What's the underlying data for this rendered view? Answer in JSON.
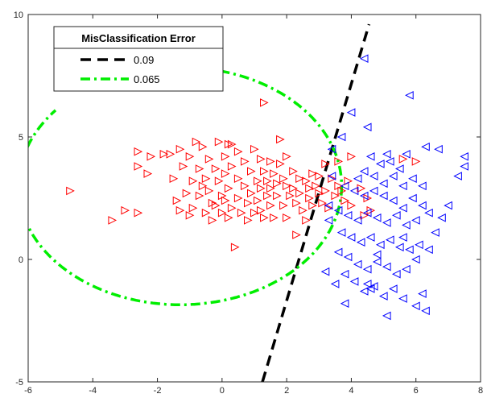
{
  "chart_data": {
    "type": "scatter",
    "xlim": [
      -6,
      8
    ],
    "ylim": [
      -5,
      10
    ],
    "x_ticks": [
      -6,
      -4,
      -2,
      0,
      2,
      4,
      6,
      8
    ],
    "y_ticks": [
      -5,
      0,
      5,
      10
    ],
    "grid": false,
    "legend": {
      "title": "MisClassification Error",
      "placement": "top-left",
      "entries": [
        {
          "label": "0.09",
          "color": "#000000",
          "style": "dashed"
        },
        {
          "label": "0.065",
          "color": "#00ee00",
          "style": "dash-dot"
        }
      ]
    },
    "series": [
      {
        "marker": "triangle-right",
        "color": "#ff0000",
        "points": [
          [
            -4.7,
            2.8
          ],
          [
            -3.4,
            1.6
          ],
          [
            -3.0,
            2.0
          ],
          [
            -2.6,
            4.4
          ],
          [
            -2.6,
            3.8
          ],
          [
            -2.6,
            1.9
          ],
          [
            -2.3,
            3.5
          ],
          [
            -2.2,
            4.2
          ],
          [
            -1.8,
            4.3
          ],
          [
            -1.6,
            4.3
          ],
          [
            -1.5,
            3.3
          ],
          [
            -1.4,
            2.4
          ],
          [
            -1.3,
            2.0
          ],
          [
            -1.3,
            4.5
          ],
          [
            -1.2,
            3.8
          ],
          [
            -1.1,
            2.7
          ],
          [
            -1.0,
            4.2
          ],
          [
            -1.0,
            1.8
          ],
          [
            -0.9,
            3.2
          ],
          [
            -0.9,
            2.1
          ],
          [
            -0.8,
            4.8
          ],
          [
            -0.7,
            3.7
          ],
          [
            -0.7,
            2.6
          ],
          [
            -0.6,
            4.6
          ],
          [
            -0.6,
            3.0
          ],
          [
            -0.5,
            3.3
          ],
          [
            -0.5,
            1.9
          ],
          [
            -0.4,
            4.1
          ],
          [
            -0.4,
            2.8
          ],
          [
            -0.3,
            2.3
          ],
          [
            -0.3,
            1.6
          ],
          [
            -0.2,
            3.7
          ],
          [
            -0.2,
            2.2
          ],
          [
            -0.1,
            4.8
          ],
          [
            -0.1,
            3.2
          ],
          [
            0.0,
            2.6
          ],
          [
            0.0,
            1.9
          ],
          [
            0.1,
            4.2
          ],
          [
            0.1,
            3.5
          ],
          [
            0.1,
            2.4
          ],
          [
            0.2,
            2.9
          ],
          [
            0.2,
            1.7
          ],
          [
            0.3,
            4.7
          ],
          [
            0.3,
            3.8
          ],
          [
            0.3,
            2.1
          ],
          [
            0.4,
            0.5
          ],
          [
            0.5,
            4.4
          ],
          [
            0.5,
            3.3
          ],
          [
            0.5,
            2.5
          ],
          [
            0.6,
            1.9
          ],
          [
            0.7,
            4.0
          ],
          [
            0.7,
            3.0
          ],
          [
            0.8,
            2.3
          ],
          [
            0.8,
            1.6
          ],
          [
            0.9,
            3.6
          ],
          [
            0.9,
            2.7
          ],
          [
            1.0,
            4.5
          ],
          [
            1.0,
            1.9
          ],
          [
            1.1,
            3.2
          ],
          [
            1.1,
            2.4
          ],
          [
            1.2,
            4.1
          ],
          [
            1.2,
            2.9
          ],
          [
            1.2,
            2.0
          ],
          [
            1.3,
            3.6
          ],
          [
            1.3,
            1.7
          ],
          [
            1.4,
            3.2
          ],
          [
            1.4,
            2.6
          ],
          [
            1.5,
            4.0
          ],
          [
            1.5,
            2.9
          ],
          [
            1.5,
            2.2
          ],
          [
            1.6,
            3.5
          ],
          [
            1.6,
            1.7
          ],
          [
            1.7,
            3.1
          ],
          [
            1.7,
            2.6
          ],
          [
            1.8,
            3.9
          ],
          [
            1.9,
            3.3
          ],
          [
            1.9,
            2.2
          ],
          [
            2.0,
            4.2
          ],
          [
            2.0,
            3.0
          ],
          [
            2.0,
            1.7
          ],
          [
            2.1,
            2.6
          ],
          [
            2.2,
            3.6
          ],
          [
            2.2,
            2.9
          ],
          [
            2.3,
            2.3
          ],
          [
            2.3,
            1.0
          ],
          [
            2.4,
            3.3
          ],
          [
            2.4,
            2.7
          ],
          [
            2.5,
            2.0
          ],
          [
            2.6,
            3.2
          ],
          [
            2.6,
            1.6
          ],
          [
            2.7,
            2.9
          ],
          [
            2.7,
            2.5
          ],
          [
            2.8,
            3.5
          ],
          [
            2.8,
            2.2
          ],
          [
            2.9,
            3.0
          ],
          [
            3.0,
            2.7
          ],
          [
            3.0,
            3.4
          ],
          [
            3.1,
            2.3
          ],
          [
            3.2,
            3.9
          ],
          [
            3.2,
            2.8
          ],
          [
            3.3,
            2.1
          ],
          [
            3.4,
            3.3
          ],
          [
            3.5,
            2.6
          ],
          [
            3.6,
            3.0
          ],
          [
            3.7,
            2.8
          ],
          [
            3.8,
            2.4
          ],
          [
            3.9,
            3.2
          ],
          [
            4.0,
            2.2
          ],
          [
            4.0,
            4.2
          ],
          [
            4.3,
            2.9
          ],
          [
            4.4,
            1.8
          ],
          [
            4.5,
            2.5
          ],
          [
            1.3,
            6.4
          ],
          [
            0.2,
            4.7
          ],
          [
            1.8,
            4.9
          ],
          [
            3.6,
            4.0
          ],
          [
            5.6,
            4.1
          ],
          [
            6.0,
            4.0
          ],
          [
            4.6,
            2.0
          ]
        ]
      },
      {
        "marker": "triangle-left",
        "color": "#0000ff",
        "points": [
          [
            4.4,
            8.2
          ],
          [
            5.8,
            6.7
          ],
          [
            4.0,
            6.0
          ],
          [
            3.7,
            5.0
          ],
          [
            4.5,
            5.4
          ],
          [
            3.4,
            4.5
          ],
          [
            6.3,
            4.6
          ],
          [
            6.7,
            4.5
          ],
          [
            5.7,
            4.3
          ],
          [
            5.1,
            4.3
          ],
          [
            4.6,
            4.2
          ],
          [
            4.9,
            3.9
          ],
          [
            5.2,
            4.0
          ],
          [
            5.5,
            3.7
          ],
          [
            4.4,
            3.6
          ],
          [
            4.2,
            3.3
          ],
          [
            4.7,
            3.4
          ],
          [
            5.0,
            3.1
          ],
          [
            5.3,
            3.4
          ],
          [
            5.6,
            3.0
          ],
          [
            5.9,
            3.3
          ],
          [
            6.2,
            3.0
          ],
          [
            3.4,
            3.4
          ],
          [
            3.8,
            3.0
          ],
          [
            4.1,
            2.8
          ],
          [
            4.4,
            2.6
          ],
          [
            4.7,
            2.8
          ],
          [
            5.0,
            2.6
          ],
          [
            5.3,
            2.4
          ],
          [
            5.6,
            2.1
          ],
          [
            5.9,
            2.5
          ],
          [
            6.2,
            2.2
          ],
          [
            3.3,
            2.2
          ],
          [
            3.6,
            2.0
          ],
          [
            3.9,
            1.8
          ],
          [
            4.2,
            1.6
          ],
          [
            4.5,
            1.9
          ],
          [
            4.8,
            1.7
          ],
          [
            5.1,
            1.5
          ],
          [
            5.4,
            1.8
          ],
          [
            5.7,
            1.4
          ],
          [
            6.0,
            1.6
          ],
          [
            6.4,
            1.9
          ],
          [
            6.8,
            1.7
          ],
          [
            7.0,
            2.2
          ],
          [
            7.3,
            3.4
          ],
          [
            7.5,
            3.8
          ],
          [
            7.5,
            4.2
          ],
          [
            3.3,
            1.6
          ],
          [
            3.7,
            1.1
          ],
          [
            4.0,
            0.9
          ],
          [
            4.3,
            0.7
          ],
          [
            4.6,
            0.9
          ],
          [
            4.9,
            0.6
          ],
          [
            5.2,
            0.8
          ],
          [
            5.5,
            0.5
          ],
          [
            5.8,
            0.4
          ],
          [
            6.1,
            0.6
          ],
          [
            6.4,
            0.4
          ],
          [
            3.6,
            0.3
          ],
          [
            3.9,
            0.1
          ],
          [
            4.2,
            -0.2
          ],
          [
            4.5,
            -0.4
          ],
          [
            4.8,
            -0.1
          ],
          [
            5.1,
            -0.3
          ],
          [
            5.4,
            -0.6
          ],
          [
            3.2,
            -0.5
          ],
          [
            3.5,
            -1.0
          ],
          [
            3.8,
            -0.6
          ],
          [
            4.1,
            -0.9
          ],
          [
            4.4,
            -1.3
          ],
          [
            4.7,
            -1.1
          ],
          [
            5.0,
            -1.5
          ],
          [
            5.3,
            -1.2
          ],
          [
            5.6,
            -1.6
          ],
          [
            6.2,
            -1.4
          ],
          [
            6.3,
            -2.1
          ],
          [
            6.0,
            -1.9
          ],
          [
            5.1,
            -2.3
          ],
          [
            4.5,
            -1.0
          ],
          [
            4.6,
            -1.2
          ],
          [
            3.8,
            -1.8
          ],
          [
            4.8,
            0.2
          ],
          [
            5.6,
            0.9
          ],
          [
            6.6,
            1.1
          ],
          [
            6.0,
            0.0
          ],
          [
            5.7,
            -0.4
          ]
        ]
      }
    ],
    "boundaries": [
      {
        "legend_label": "0.09",
        "color": "#000000",
        "style": "dashed",
        "x": [
          1.25,
          4.55
        ],
        "y": [
          -5.0,
          9.6
        ]
      },
      {
        "legend_label": "0.065",
        "color": "#00ee00",
        "style": "dash-dot",
        "center": [
          -1.3,
          3.0
        ],
        "radius_x": 5.0,
        "radius_y": 4.85,
        "x_range": [
          -6.0,
          3.7
        ]
      }
    ]
  }
}
